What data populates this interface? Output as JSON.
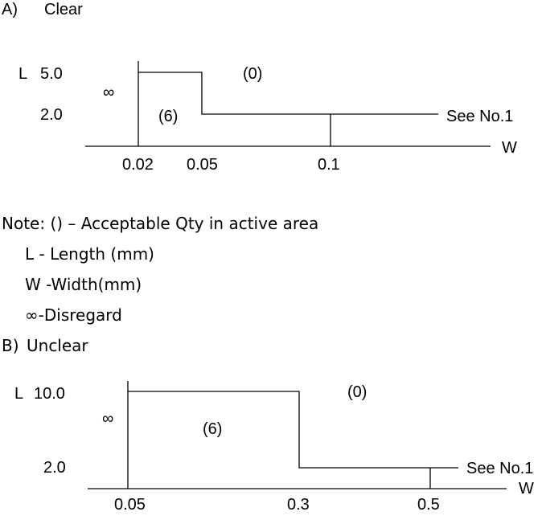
{
  "section_a": {
    "label": "A)",
    "title": "Clear",
    "l_axis": "L",
    "w_axis": "W",
    "l_ticks": [
      "5.0",
      "2.0"
    ],
    "w_ticks": [
      "0.02",
      "0.05",
      "0.1"
    ],
    "region_infinite": "∞",
    "region_six": "(6)",
    "region_zero": "(0)",
    "see_note": "See No.1"
  },
  "notes": {
    "line1": "Note: () – Acceptable Qty in active area",
    "line2": "L - Length (mm)",
    "line3": "W -Width(mm)",
    "line4": "∞-Disregard"
  },
  "section_b": {
    "label": "B)",
    "title": "Unclear",
    "l_axis": "L",
    "w_axis": "W",
    "l_ticks": [
      "10.0",
      "2.0"
    ],
    "w_ticks": [
      "0.05",
      "0.3",
      "0.5"
    ],
    "region_infinite": "∞",
    "region_six": "(6)",
    "region_zero": "(0)",
    "see_note": "See No.1"
  }
}
